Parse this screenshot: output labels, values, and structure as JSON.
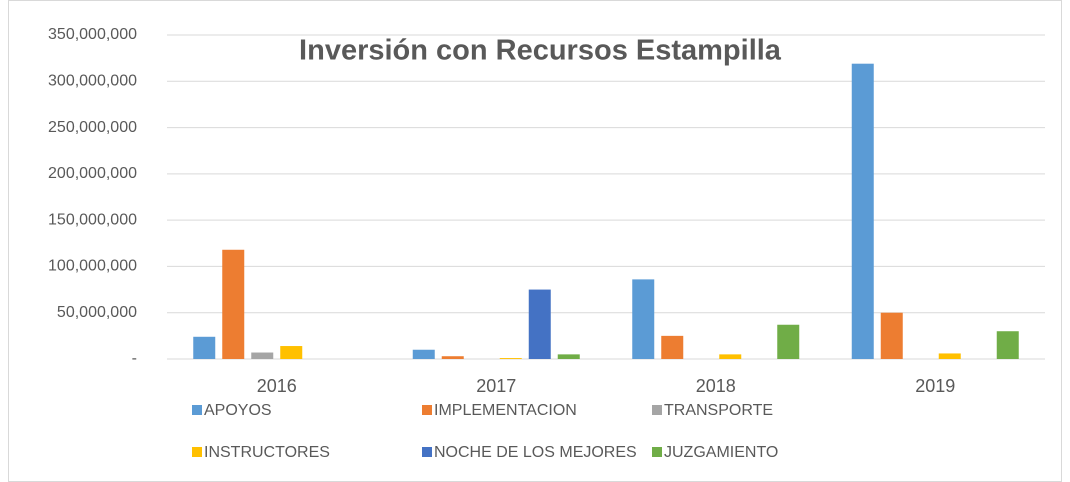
{
  "chart_data": {
    "type": "bar",
    "title": "Inversión con Recursos Estampilla",
    "categories": [
      "2016",
      "2017",
      "2018",
      "2019"
    ],
    "series": [
      {
        "name": "APOYOS",
        "color": "#5b9bd5",
        "values": [
          24000000,
          10000000,
          86000000,
          319000000
        ]
      },
      {
        "name": "IMPLEMENTACION",
        "color": "#ed7d31",
        "values": [
          118000000,
          3000000,
          25000000,
          50000000
        ]
      },
      {
        "name": "TRANSPORTE",
        "color": "#a5a5a5",
        "values": [
          7000000,
          0,
          0,
          0
        ]
      },
      {
        "name": "INSTRUCTORES",
        "color": "#ffc000",
        "values": [
          14000000,
          1000000,
          5000000,
          6000000
        ]
      },
      {
        "name": "NOCHE DE LOS MEJORES",
        "color": "#4472c4",
        "values": [
          0,
          75000000,
          0,
          0
        ]
      },
      {
        "name": "JUZGAMIENTO",
        "color": "#70ad47",
        "values": [
          0,
          5000000,
          37000000,
          30000000
        ]
      }
    ],
    "ylim": [
      0,
      350000000
    ],
    "yticks": [
      {
        "value": 0,
        "label": "-"
      },
      {
        "value": 50000000,
        "label": "50,000,000"
      },
      {
        "value": 100000000,
        "label": "100,000,000"
      },
      {
        "value": 150000000,
        "label": "150,000,000"
      },
      {
        "value": 200000000,
        "label": "200,000,000"
      },
      {
        "value": 250000000,
        "label": "250,000,000"
      },
      {
        "value": 300000000,
        "label": "300,000,000"
      },
      {
        "value": 350000000,
        "label": "350,000,000"
      }
    ],
    "grid": true
  }
}
